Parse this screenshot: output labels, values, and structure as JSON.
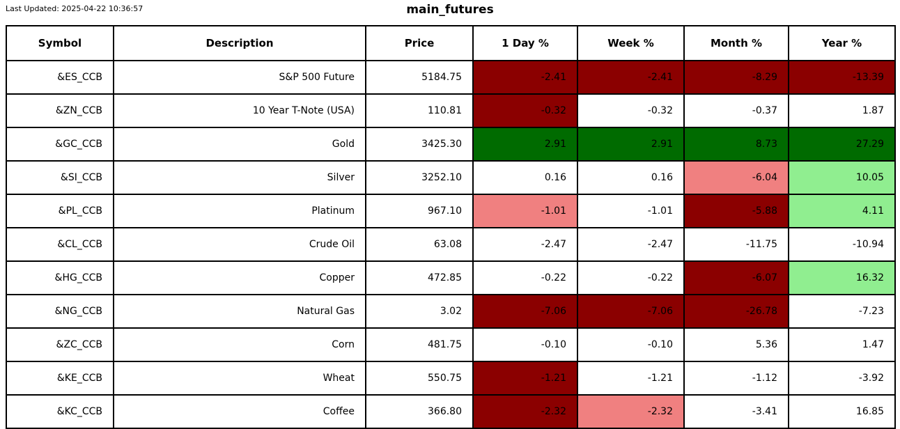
{
  "meta": {
    "last_updated": "Last Updated: 2025-04-22 10:36:57",
    "title": "main_futures"
  },
  "colors": {
    "darkred": "#8B0000",
    "lightcoral": "#F08080",
    "green": "#006B00",
    "lightgreen": "#90EE90",
    "white": "#FFFFFF"
  },
  "chart_data": {
    "type": "table",
    "title": "main_futures",
    "columns": [
      "Symbol",
      "Description",
      "Price",
      "1 Day %",
      "Week %",
      "Month %",
      "Year %"
    ],
    "rows": [
      {
        "symbol": "&ES_CCB",
        "description": "S&P 500 Future",
        "price": "5184.75",
        "pct": [
          {
            "value": "-2.41",
            "color": "darkred"
          },
          {
            "value": "-2.41",
            "color": "darkred"
          },
          {
            "value": "-8.29",
            "color": "darkred"
          },
          {
            "value": "-13.39",
            "color": "darkred"
          }
        ]
      },
      {
        "symbol": "&ZN_CCB",
        "description": "10 Year T-Note (USA)",
        "price": "110.81",
        "pct": [
          {
            "value": "-0.32",
            "color": "darkred"
          },
          {
            "value": "-0.32",
            "color": "white"
          },
          {
            "value": "-0.37",
            "color": "white"
          },
          {
            "value": "1.87",
            "color": "white"
          }
        ]
      },
      {
        "symbol": "&GC_CCB",
        "description": "Gold",
        "price": "3425.30",
        "pct": [
          {
            "value": "2.91",
            "color": "green"
          },
          {
            "value": "2.91",
            "color": "green"
          },
          {
            "value": "8.73",
            "color": "green"
          },
          {
            "value": "27.29",
            "color": "green"
          }
        ]
      },
      {
        "symbol": "&SI_CCB",
        "description": "Silver",
        "price": "3252.10",
        "pct": [
          {
            "value": "0.16",
            "color": "white"
          },
          {
            "value": "0.16",
            "color": "white"
          },
          {
            "value": "-6.04",
            "color": "lightcoral"
          },
          {
            "value": "10.05",
            "color": "lightgreen"
          }
        ]
      },
      {
        "symbol": "&PL_CCB",
        "description": "Platinum",
        "price": "967.10",
        "pct": [
          {
            "value": "-1.01",
            "color": "lightcoral"
          },
          {
            "value": "-1.01",
            "color": "white"
          },
          {
            "value": "-5.88",
            "color": "darkred"
          },
          {
            "value": "4.11",
            "color": "lightgreen"
          }
        ]
      },
      {
        "symbol": "&CL_CCB",
        "description": "Crude Oil",
        "price": "63.08",
        "pct": [
          {
            "value": "-2.47",
            "color": "white"
          },
          {
            "value": "-2.47",
            "color": "white"
          },
          {
            "value": "-11.75",
            "color": "white"
          },
          {
            "value": "-10.94",
            "color": "white"
          }
        ]
      },
      {
        "symbol": "&HG_CCB",
        "description": "Copper",
        "price": "472.85",
        "pct": [
          {
            "value": "-0.22",
            "color": "white"
          },
          {
            "value": "-0.22",
            "color": "white"
          },
          {
            "value": "-6.07",
            "color": "darkred"
          },
          {
            "value": "16.32",
            "color": "lightgreen"
          }
        ]
      },
      {
        "symbol": "&NG_CCB",
        "description": "Natural Gas",
        "price": "3.02",
        "pct": [
          {
            "value": "-7.06",
            "color": "darkred"
          },
          {
            "value": "-7.06",
            "color": "darkred"
          },
          {
            "value": "-26.78",
            "color": "darkred"
          },
          {
            "value": "-7.23",
            "color": "white"
          }
        ]
      },
      {
        "symbol": "&ZC_CCB",
        "description": "Corn",
        "price": "481.75",
        "pct": [
          {
            "value": "-0.10",
            "color": "white"
          },
          {
            "value": "-0.10",
            "color": "white"
          },
          {
            "value": "5.36",
            "color": "white"
          },
          {
            "value": "1.47",
            "color": "white"
          }
        ]
      },
      {
        "symbol": "&KE_CCB",
        "description": "Wheat",
        "price": "550.75",
        "pct": [
          {
            "value": "-1.21",
            "color": "darkred"
          },
          {
            "value": "-1.21",
            "color": "white"
          },
          {
            "value": "-1.12",
            "color": "white"
          },
          {
            "value": "-3.92",
            "color": "white"
          }
        ]
      },
      {
        "symbol": "&KC_CCB",
        "description": "Coffee",
        "price": "366.80",
        "pct": [
          {
            "value": "-2.32",
            "color": "darkred"
          },
          {
            "value": "-2.32",
            "color": "lightcoral"
          },
          {
            "value": "-3.41",
            "color": "white"
          },
          {
            "value": "16.85",
            "color": "white"
          }
        ]
      }
    ]
  }
}
